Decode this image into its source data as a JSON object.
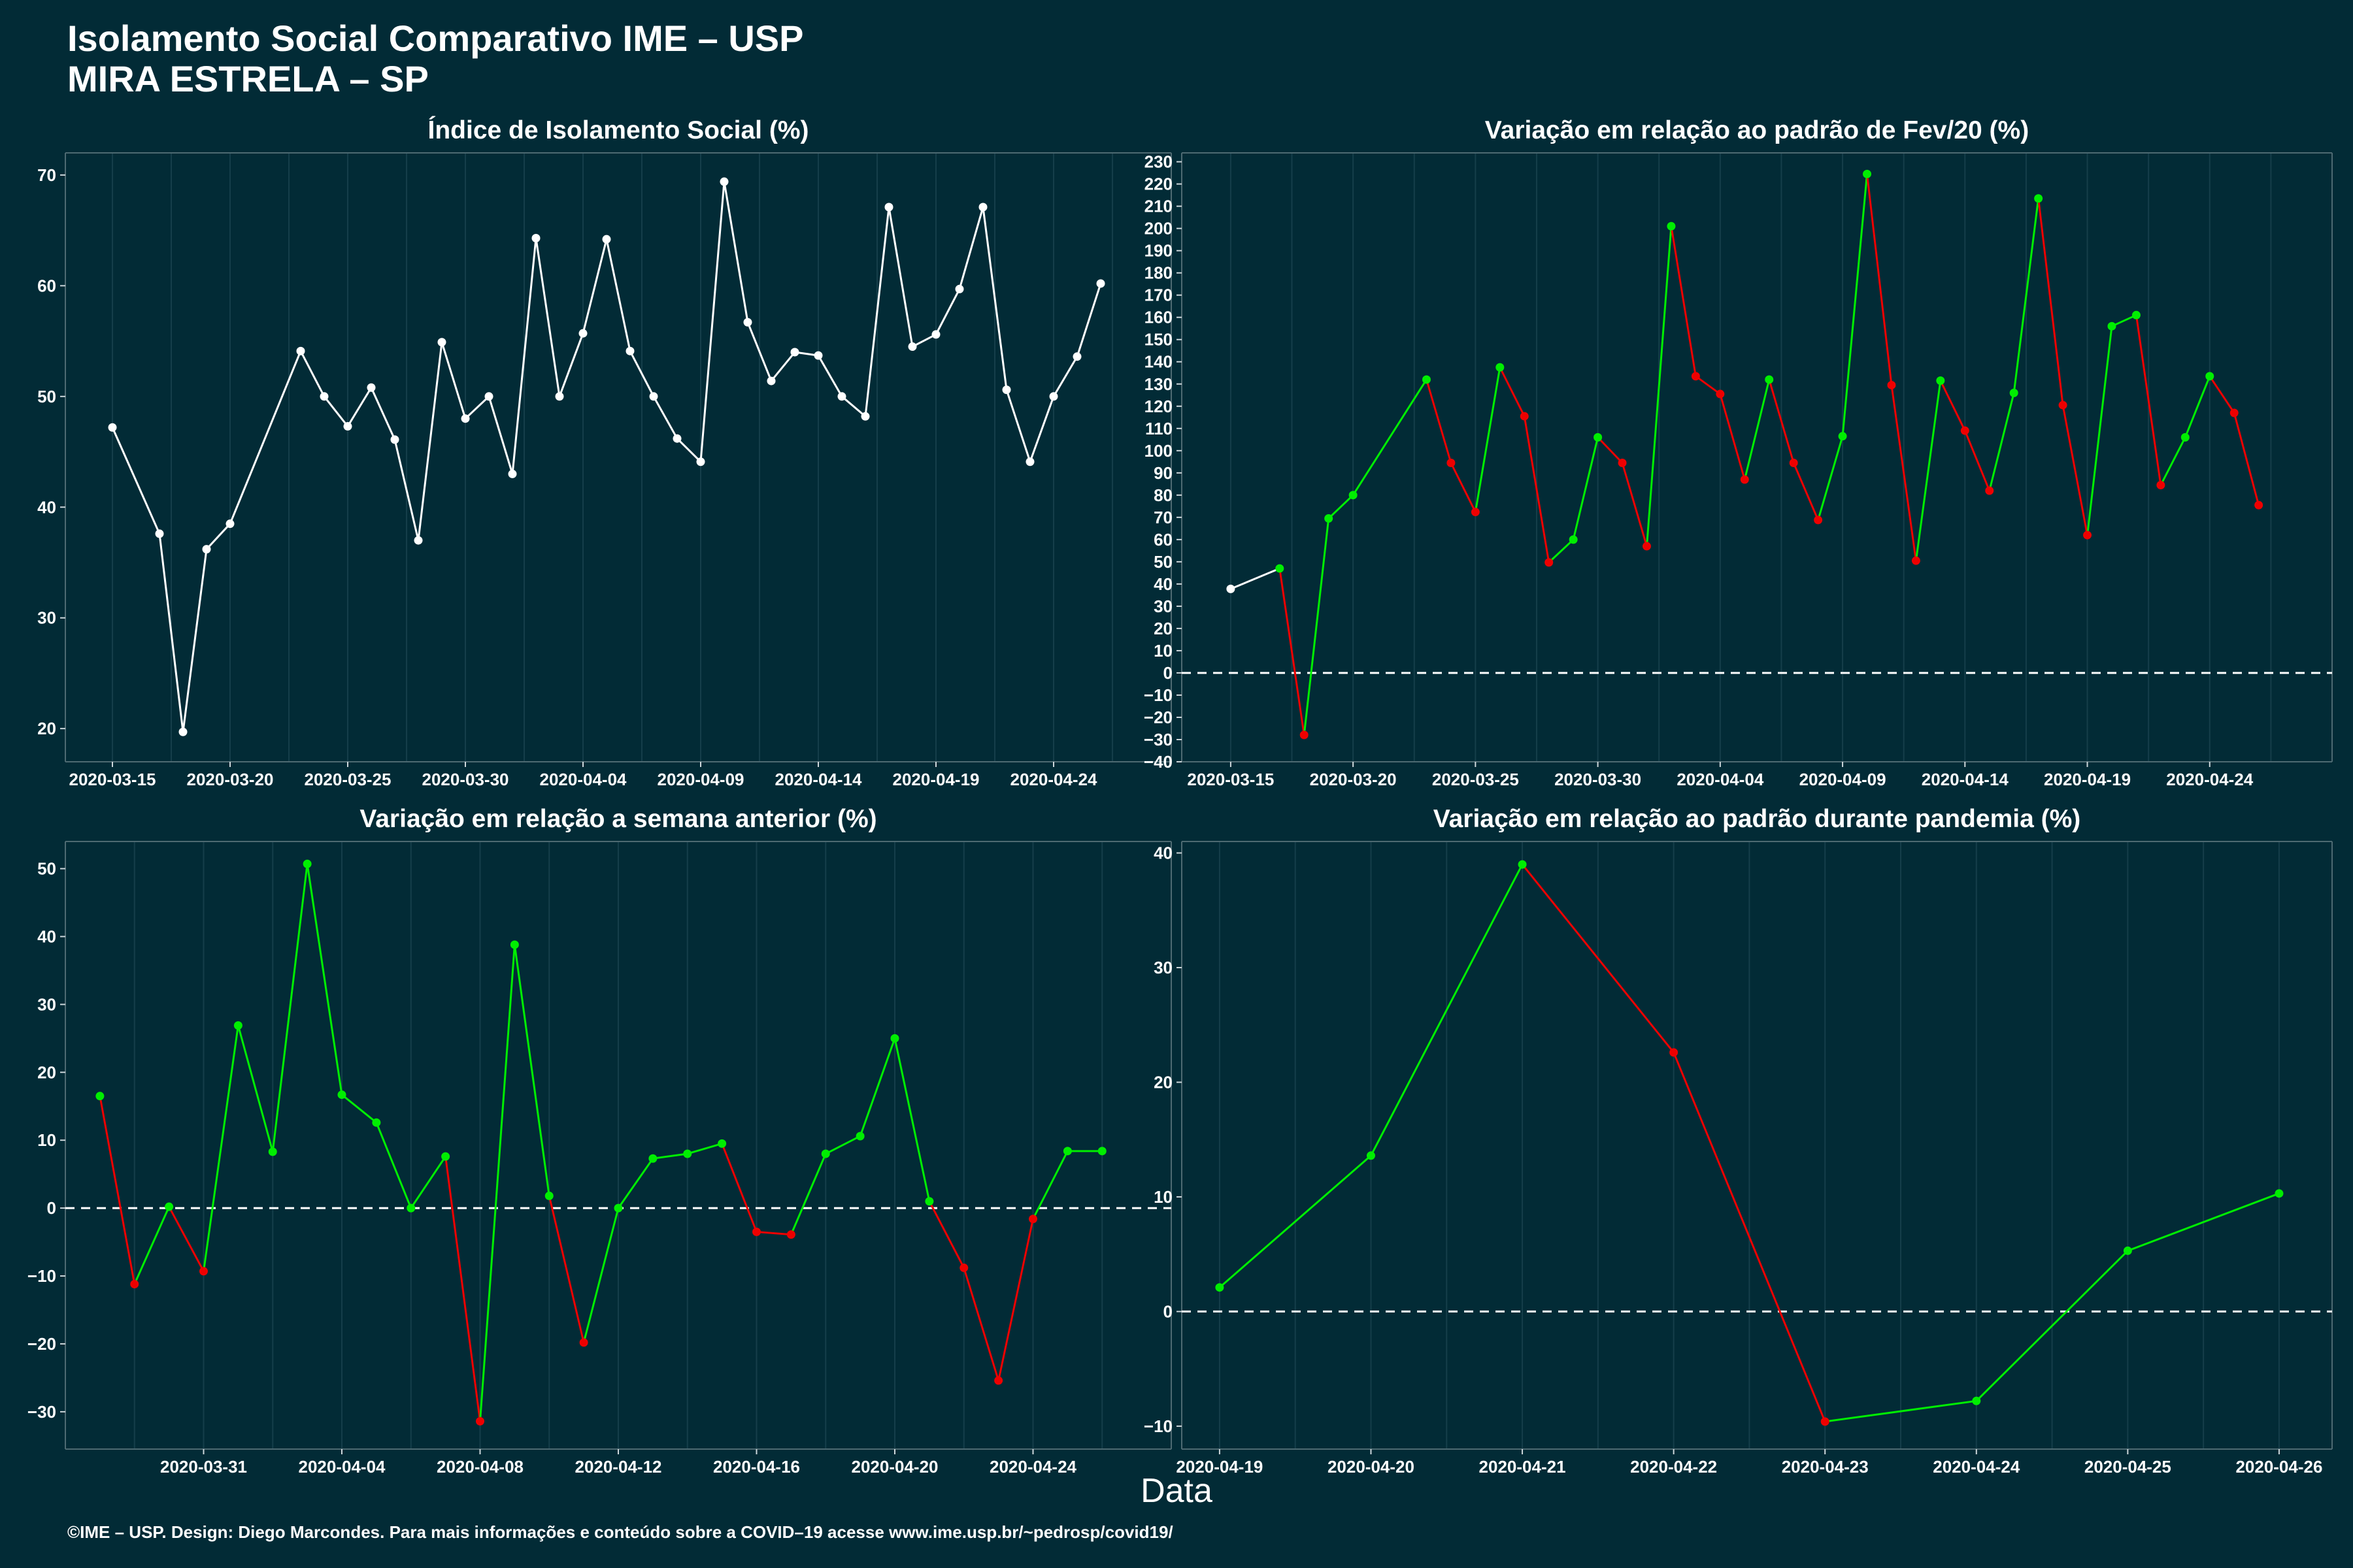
{
  "header": {
    "title": "Isolamento Social Comparativo IME – USP",
    "subtitle": "MIRA ESTRELA – SP"
  },
  "xlabel": "Data",
  "footer": "©IME – USP. Design: Diego Marcondes. Para mais informações e conteúdo sobre a COVID–19 acesse www.ime.usp.br/~pedrosp/covid19/",
  "colors": {
    "background": "#022b36",
    "neutral": "#ffffff",
    "positive": "#00ee00",
    "negative": "#ee0000",
    "grid": "#153e4a"
  },
  "chart_data": [
    {
      "type": "line",
      "title": "Índice de Isolamento Social (%)",
      "ylim": [
        17,
        72
      ],
      "yticks": [
        20,
        30,
        40,
        50,
        60,
        70
      ],
      "xlim": [
        "2020-03-13",
        "2020-04-29"
      ],
      "xtick_labels": [
        "2020-03-15",
        "2020-03-20",
        "2020-03-25",
        "2020-03-30",
        "2020-04-04",
        "2020-04-09",
        "2020-04-14",
        "2020-04-19",
        "2020-04-24"
      ],
      "baseline": null,
      "coloring": "neutral",
      "x": [
        "2020-03-15",
        "2020-03-17",
        "2020-03-18",
        "2020-03-19",
        "2020-03-20",
        "2020-03-23",
        "2020-03-24",
        "2020-03-25",
        "2020-03-26",
        "2020-03-27",
        "2020-03-28",
        "2020-03-29",
        "2020-03-30",
        "2020-03-31",
        "2020-04-01",
        "2020-04-02",
        "2020-04-03",
        "2020-04-04",
        "2020-04-05",
        "2020-04-06",
        "2020-04-07",
        "2020-04-08",
        "2020-04-09",
        "2020-04-10",
        "2020-04-11",
        "2020-04-12",
        "2020-04-13",
        "2020-04-14",
        "2020-04-15",
        "2020-04-16",
        "2020-04-17",
        "2020-04-18",
        "2020-04-19",
        "2020-04-20",
        "2020-04-21",
        "2020-04-22",
        "2020-04-23",
        "2020-04-24",
        "2020-04-25",
        "2020-04-26"
      ],
      "y": [
        47.2,
        37.6,
        19.7,
        36.2,
        38.5,
        54.1,
        50.0,
        47.3,
        50.8,
        46.1,
        37.0,
        54.9,
        48.0,
        50.0,
        43.0,
        64.3,
        50.0,
        55.7,
        64.2,
        54.1,
        50.0,
        46.2,
        44.1,
        69.4,
        56.7,
        51.4,
        54.0,
        53.7,
        50.0,
        48.2,
        67.1,
        54.5,
        55.6,
        59.7,
        67.1,
        50.6,
        44.1,
        50.0,
        53.6,
        60.2
      ]
    },
    {
      "type": "line",
      "title": "Variação em relação ao padrão de Fev/20 (%)",
      "ylim": [
        -40,
        234
      ],
      "yticks": [
        -40,
        -30,
        -20,
        -10,
        0,
        10,
        20,
        30,
        40,
        50,
        60,
        70,
        80,
        90,
        100,
        110,
        120,
        130,
        140,
        150,
        160,
        170,
        180,
        190,
        200,
        210,
        220,
        230
      ],
      "xlim": [
        "2020-03-13",
        "2020-04-29"
      ],
      "xtick_labels": [
        "2020-03-15",
        "2020-03-20",
        "2020-03-25",
        "2020-03-30",
        "2020-04-04",
        "2020-04-09",
        "2020-04-14",
        "2020-04-19",
        "2020-04-24"
      ],
      "baseline": 0,
      "coloring": "trend",
      "x": [
        "2020-03-15",
        "2020-03-17",
        "2020-03-18",
        "2020-03-19",
        "2020-03-20",
        "2020-03-23",
        "2020-03-24",
        "2020-03-25",
        "2020-03-26",
        "2020-03-27",
        "2020-03-28",
        "2020-03-29",
        "2020-03-30",
        "2020-03-31",
        "2020-04-01",
        "2020-04-02",
        "2020-04-03",
        "2020-04-04",
        "2020-04-05",
        "2020-04-06",
        "2020-04-07",
        "2020-04-08",
        "2020-04-09",
        "2020-04-10",
        "2020-04-11",
        "2020-04-12",
        "2020-04-13",
        "2020-04-14",
        "2020-04-15",
        "2020-04-16",
        "2020-04-17",
        "2020-04-18",
        "2020-04-19",
        "2020-04-20",
        "2020-04-21",
        "2020-04-22",
        "2020-04-23",
        "2020-04-24",
        "2020-04-25",
        "2020-04-26"
      ],
      "y": [
        37.8,
        47.0,
        -27.9,
        69.5,
        80.0,
        132.0,
        94.5,
        72.4,
        137.5,
        115.5,
        49.7,
        60.0,
        106.0,
        94.5,
        57.0,
        201.0,
        133.5,
        125.5,
        87.0,
        132.0,
        94.5,
        68.8,
        106.5,
        224.5,
        129.5,
        50.5,
        131.5,
        109.0,
        82.0,
        126.0,
        213.5,
        120.5,
        62.0,
        156.0,
        161.0,
        84.5,
        106.0,
        133.5,
        117.0,
        75.5
      ]
    },
    {
      "type": "line",
      "title": "Variação em relação a semana anterior (%)",
      "ylim": [
        -35.5,
        54
      ],
      "yticks": [
        -30,
        -20,
        -10,
        0,
        10,
        20,
        30,
        40,
        50
      ],
      "xlim": [
        "2020-03-27",
        "2020-04-28"
      ],
      "xtick_labels": [
        "2020-03-31",
        "2020-04-04",
        "2020-04-08",
        "2020-04-12",
        "2020-04-16",
        "2020-04-20",
        "2020-04-24"
      ],
      "baseline": 0,
      "coloring": "sign",
      "x": [
        "2020-03-28",
        "2020-03-29",
        "2020-03-30",
        "2020-03-31",
        "2020-04-01",
        "2020-04-02",
        "2020-04-03",
        "2020-04-04",
        "2020-04-05",
        "2020-04-06",
        "2020-04-07",
        "2020-04-08",
        "2020-04-09",
        "2020-04-10",
        "2020-04-11",
        "2020-04-12",
        "2020-04-13",
        "2020-04-14",
        "2020-04-15",
        "2020-04-16",
        "2020-04-17",
        "2020-04-18",
        "2020-04-19",
        "2020-04-20",
        "2020-04-21",
        "2020-04-22",
        "2020-04-23",
        "2020-04-24",
        "2020-04-25",
        "2020-04-26"
      ],
      "y": [
        16.5,
        -11.2,
        0.2,
        -9.3,
        26.9,
        8.3,
        50.7,
        16.7,
        12.6,
        0.0,
        7.6,
        -31.4,
        38.8,
        1.8,
        -19.8,
        0.0,
        7.3,
        8.0,
        9.5,
        -3.5,
        -3.9,
        8.0,
        10.6,
        25.0,
        1.0,
        -8.8,
        -25.4,
        -1.6,
        8.4,
        8.4
      ]
    },
    {
      "type": "line",
      "title": "Variação em relação ao padrão durante pandemia (%)",
      "ylim": [
        -12,
        41
      ],
      "yticks": [
        -10,
        0,
        10,
        20,
        30,
        40
      ],
      "xlim": [
        "2020-04-18.75",
        "2020-04-26.35"
      ],
      "xtick_labels": [
        "2020-04-19",
        "2020-04-20",
        "2020-04-21",
        "2020-04-22",
        "2020-04-23",
        "2020-04-24",
        "2020-04-25",
        "2020-04-26"
      ],
      "baseline": 0,
      "coloring": "trend",
      "x": [
        "2020-04-19",
        "2020-04-20",
        "2020-04-21",
        "2020-04-22",
        "2020-04-23",
        "2020-04-24",
        "2020-04-25",
        "2020-04-26"
      ],
      "y": [
        2.1,
        13.6,
        39.0,
        22.6,
        -9.6,
        -7.8,
        5.3,
        10.3
      ]
    }
  ]
}
